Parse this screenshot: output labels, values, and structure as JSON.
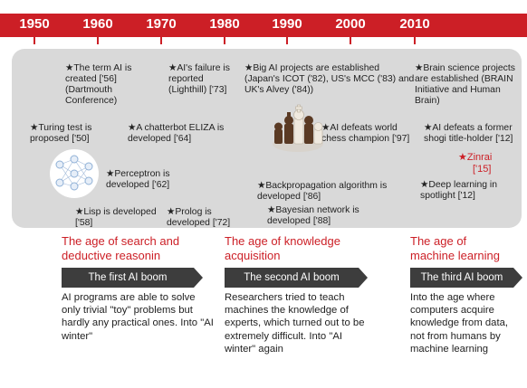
{
  "years": [
    "1950",
    "1960",
    "1970",
    "1980",
    "1990",
    "2000",
    "2010"
  ],
  "events": {
    "term_ai": "★The term AI is created ['56] (Dartmouth Conference)",
    "turing": "★Turing test is proposed ['50]",
    "perceptron": "★Perceptron is developed ['62]",
    "lisp": "★Lisp is developed ['58]",
    "ai_failure": "★AI's failure is reported (Lighthill) ['73]",
    "eliza": "★A chatterbot ELIZA is developed ['64]",
    "prolog": "★Prolog is developed ['72]",
    "big_ai": "★Big AI projects are established (Japan's ICOT ('82), US's MCC ('83) and UK's Alvey ('84))",
    "chess": "★AI defeats world chess champion ['97]",
    "backprop": "★Backpropagation algorithm is developed ['86]",
    "bayesian": "★Bayesian network is developed ['88]",
    "brain": "★Brain science projects are established (BRAIN Initiative and Human Brain)",
    "shogi": "★AI defeats a former shogi title-holder ['12]",
    "zinrai": "★Zinrai",
    "zinrai_year": "['15]",
    "deep": "★Deep learning in spotlight ['12]"
  },
  "ages": [
    {
      "title": "The age of search and deductive reasonin",
      "boom": "The first AI boom",
      "desc": "AI programs are able to solve only trivial \"toy\" problems but hardly any practical ones. Into \"AI winter\""
    },
    {
      "title": "The age of knowledge acquisition",
      "boom": "The second AI boom",
      "desc": "Researchers tried to teach machines the knowledge of experts, which turned out to be extremely difficult. Into \"AI winter\" again"
    },
    {
      "title": "The age of machine learning",
      "boom": "The third AI boom",
      "desc": "Into the age where computers acquire knowledge from data, not from humans by machine learning"
    }
  ],
  "colors": {
    "accent": "#cc1f26",
    "panel": "#d9d9d9",
    "boom": "#3d3d3d"
  },
  "icons": [
    "neural-network-icon",
    "chess-pieces-icon"
  ]
}
